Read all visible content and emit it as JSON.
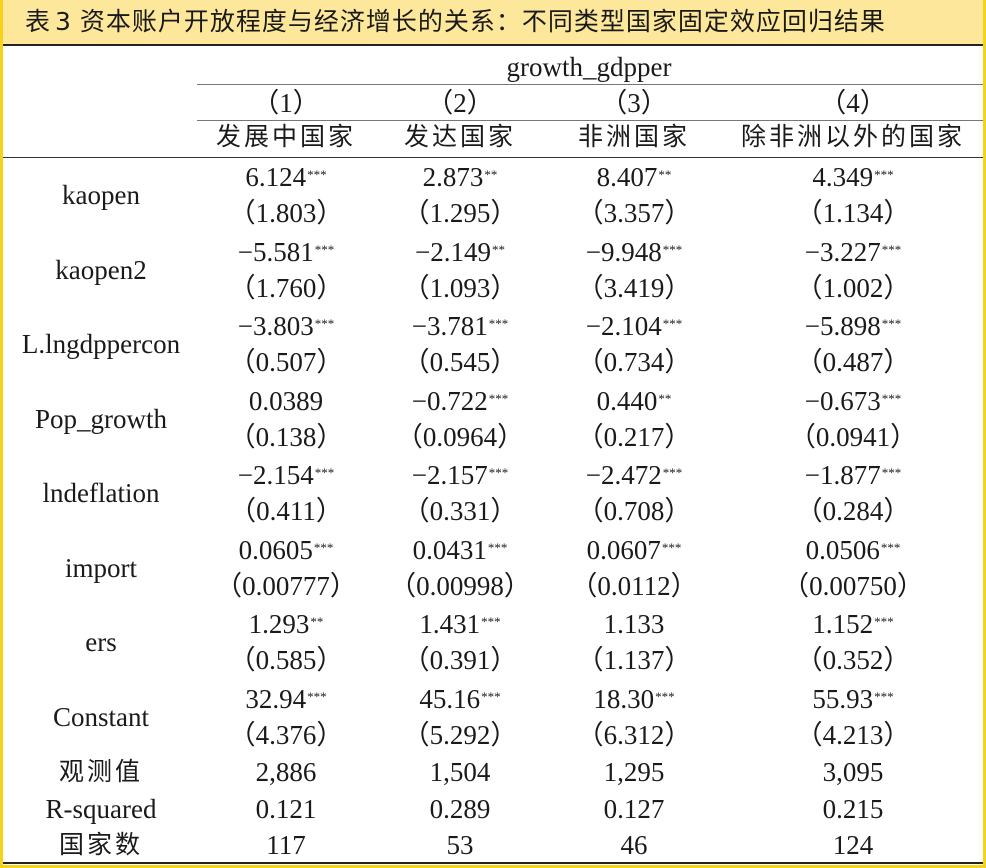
{
  "title": {
    "table_no": "表3",
    "num": "3",
    "prefix": "表",
    "text": "资本账户开放程度与经济增长的关系：不同类型国家固定效应回归结果"
  },
  "header": {
    "dep_var": "growth_gdpper",
    "col_nums": [
      "（1）",
      "（2）",
      "（3）",
      "（4）"
    ],
    "col_names": [
      "发展中国家",
      "发达国家",
      "非洲国家",
      "除非洲以外的国家"
    ]
  },
  "rows": [
    {
      "label": "kaopen",
      "coef": [
        "6.124",
        "2.873",
        "8.407",
        "4.349"
      ],
      "stars": [
        "***",
        "**",
        "**",
        "***"
      ],
      "se": [
        "（1.803）",
        "（1.295）",
        "（3.357）",
        "（1.134）"
      ]
    },
    {
      "label": "kaopen2",
      "coef": [
        "−5.581",
        "−2.149",
        "−9.948",
        "−3.227"
      ],
      "stars": [
        "***",
        "**",
        "***",
        "***"
      ],
      "se": [
        "（1.760）",
        "（1.093）",
        "（3.419）",
        "（1.002）"
      ]
    },
    {
      "label": "L.lngdppercon",
      "coef": [
        "−3.803",
        "−3.781",
        "−2.104",
        "−5.898"
      ],
      "stars": [
        "***",
        "***",
        "***",
        "***"
      ],
      "se": [
        "（0.507）",
        "（0.545）",
        "（0.734）",
        "（0.487）"
      ]
    },
    {
      "label": "Pop_growth",
      "coef": [
        "0.0389",
        "−0.722",
        "0.440",
        "−0.673"
      ],
      "stars": [
        "",
        "***",
        "**",
        "***"
      ],
      "se": [
        "（0.138）",
        "（0.0964）",
        "（0.217）",
        "（0.0941）"
      ]
    },
    {
      "label": "lndeflation",
      "coef": [
        "−2.154",
        "−2.157",
        "−2.472",
        "−1.877"
      ],
      "stars": [
        "***",
        "***",
        "***",
        "***"
      ],
      "se": [
        "（0.411）",
        "（0.331）",
        "（0.708）",
        "（0.284）"
      ]
    },
    {
      "label": "import",
      "coef": [
        "0.0605",
        "0.0431",
        "0.0607",
        "0.0506"
      ],
      "stars": [
        "***",
        "***",
        "***",
        "***"
      ],
      "se": [
        "（0.00777）",
        "（0.00998）",
        "（0.0112）",
        "（0.00750）"
      ]
    },
    {
      "label": "ers",
      "coef": [
        "1.293",
        "1.431",
        "1.133",
        "1.152"
      ],
      "stars": [
        "**",
        "***",
        "",
        "***"
      ],
      "se": [
        "（0.585）",
        "（0.391）",
        "（1.137）",
        "（0.352）"
      ]
    },
    {
      "label": "Constant",
      "coef": [
        "32.94",
        "45.16",
        "18.30",
        "55.93"
      ],
      "stars": [
        "***",
        "***",
        "***",
        "***"
      ],
      "se": [
        "（4.376）",
        "（5.292）",
        "（6.312）",
        "（4.213）"
      ]
    }
  ],
  "stats": [
    {
      "label": "观测值",
      "values": [
        "2,886",
        "1,504",
        "1,295",
        "3,095"
      ]
    },
    {
      "label": "R-squared",
      "values": [
        "0.121",
        "0.289",
        "0.127",
        "0.215"
      ]
    },
    {
      "label": "国家数",
      "values": [
        "117",
        "53",
        "46",
        "124"
      ]
    }
  ]
}
